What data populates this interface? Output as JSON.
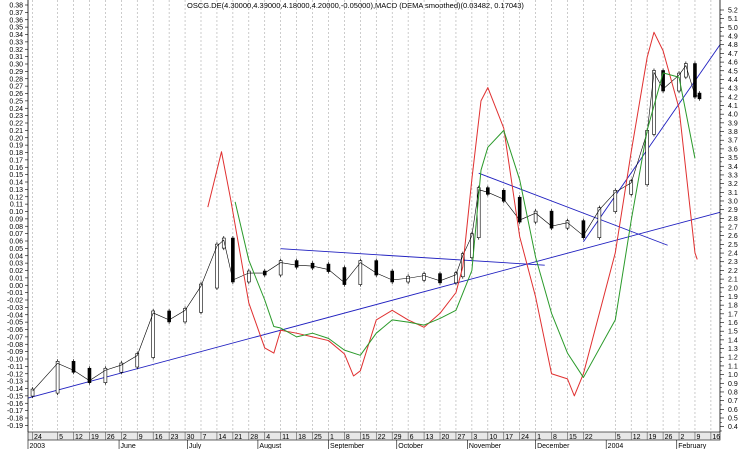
{
  "chart_data": {
    "type": "line",
    "title": "OSCG.DE(4.30000,4.39000,4.18000,4.20000,-0.05000),MACD (DEMA smoothed)(0.03482, 0.17043)",
    "x_domain": [
      "2003-04-22",
      "2004-02-20"
    ],
    "left_axis": {
      "ylim": [
        -0.19,
        0.38
      ],
      "ticks": [
        "0.38",
        "0.37",
        "0.36",
        "0.35",
        "0.34",
        "0.33",
        "0.32",
        "0.31",
        "0.30",
        "0.29",
        "0.28",
        "0.27",
        "0.26",
        "0.25",
        "0.24",
        "0.23",
        "0.22",
        "0.21",
        "0.20",
        "0.19",
        "0.18",
        "0.17",
        "0.16",
        "0.15",
        "0.14",
        "0.13",
        "0.12",
        "0.11",
        "0.10",
        "0.09",
        "0.08",
        "0.07",
        "0.06",
        "0.05",
        "0.04",
        "0.03",
        "0.02",
        "0.01",
        "0.00",
        "-0.01",
        "-0.02",
        "-0.03",
        "-0.04",
        "-0.05",
        "-0.06",
        "-0.07",
        "-0.08",
        "-0.09",
        "-0.10",
        "-0.11",
        "-0.12",
        "-0.13",
        "-0.14",
        "-0.15",
        "-0.16",
        "-0.17",
        "-0.18",
        "-0.19"
      ]
    },
    "right_axis": {
      "ylim": [
        0.4,
        5.2
      ],
      "ticks": [
        "5.2",
        "5.1",
        "5.0",
        "4.9",
        "4.8",
        "4.7",
        "4.6",
        "4.5",
        "4.4",
        "4.3",
        "4.2",
        "4.1",
        "4.0",
        "3.9",
        "3.8",
        "3.7",
        "3.6",
        "3.5",
        "3.4",
        "3.3",
        "3.2",
        "3.1",
        "3.0",
        "2.9",
        "2.8",
        "2.7",
        "2.6",
        "2.5",
        "2.4",
        "2.3",
        "2.2",
        "2.1",
        "2.0",
        "1.9",
        "1.8",
        "1.7",
        "1.6",
        "1.5",
        "1.4",
        "1.3",
        "1.2",
        "1.1",
        "1.0",
        "0.9",
        "0.8",
        "0.7",
        "0.6",
        "0.5",
        "0.4"
      ]
    },
    "x_ticks": [
      {
        "date": "2003-04-24",
        "label": "24"
      },
      {
        "date": "2003-05-05",
        "label": "5"
      },
      {
        "date": "2003-05-12",
        "label": "12"
      },
      {
        "date": "2003-05-19",
        "label": "19"
      },
      {
        "date": "2003-05-26",
        "label": "26"
      },
      {
        "date": "2003-06-02",
        "label": "2"
      },
      {
        "date": "2003-06-09",
        "label": "9"
      },
      {
        "date": "2003-06-16",
        "label": "16"
      },
      {
        "date": "2003-06-23",
        "label": "23"
      },
      {
        "date": "2003-06-30",
        "label": "30"
      },
      {
        "date": "2003-07-07",
        "label": "7"
      },
      {
        "date": "2003-07-14",
        "label": "14"
      },
      {
        "date": "2003-07-21",
        "label": "21"
      },
      {
        "date": "2003-07-28",
        "label": "28"
      },
      {
        "date": "2003-08-04",
        "label": "4"
      },
      {
        "date": "2003-08-11",
        "label": "11"
      },
      {
        "date": "2003-08-18",
        "label": "18"
      },
      {
        "date": "2003-08-25",
        "label": "25"
      },
      {
        "date": "2003-09-01",
        "label": "1"
      },
      {
        "date": "2003-09-08",
        "label": "8"
      },
      {
        "date": "2003-09-15",
        "label": "15"
      },
      {
        "date": "2003-09-22",
        "label": "22"
      },
      {
        "date": "2003-09-29",
        "label": "29"
      },
      {
        "date": "2003-10-06",
        "label": "6"
      },
      {
        "date": "2003-10-13",
        "label": "13"
      },
      {
        "date": "2003-10-20",
        "label": "20"
      },
      {
        "date": "2003-10-27",
        "label": "27"
      },
      {
        "date": "2003-11-03",
        "label": "3"
      },
      {
        "date": "2003-11-10",
        "label": "10"
      },
      {
        "date": "2003-11-17",
        "label": "17"
      },
      {
        "date": "2003-11-24",
        "label": "24"
      },
      {
        "date": "2003-12-01",
        "label": "1"
      },
      {
        "date": "2003-12-08",
        "label": "8"
      },
      {
        "date": "2003-12-15",
        "label": "15"
      },
      {
        "date": "2003-12-22",
        "label": "22"
      },
      {
        "date": "2004-01-05",
        "label": "5"
      },
      {
        "date": "2004-01-12",
        "label": "12"
      },
      {
        "date": "2004-01-19",
        "label": "19"
      },
      {
        "date": "2004-01-26",
        "label": "26"
      },
      {
        "date": "2004-02-02",
        "label": "2"
      },
      {
        "date": "2004-02-09",
        "label": "9"
      },
      {
        "date": "2004-02-16",
        "label": "16"
      }
    ],
    "month_labels": [
      {
        "date": "2003-04-22",
        "label": "2003"
      },
      {
        "date": "2003-06-01",
        "label": "June"
      },
      {
        "date": "2003-07-01",
        "label": "July"
      },
      {
        "date": "2003-08-01",
        "label": "August"
      },
      {
        "date": "2003-09-01",
        "label": "September"
      },
      {
        "date": "2003-10-01",
        "label": "October"
      },
      {
        "date": "2003-11-01",
        "label": "November"
      },
      {
        "date": "2003-12-01",
        "label": "December"
      },
      {
        "date": "2004-01-01",
        "label": "2004"
      },
      {
        "date": "2004-02-01",
        "label": "February"
      }
    ],
    "series": [
      {
        "name": "OSCG.DE",
        "axis": "right",
        "style": "candles",
        "color": "#000000",
        "points": [
          [
            "2003-04-24",
            0.81
          ],
          [
            "2003-05-05",
            1.13
          ],
          [
            "2003-05-12",
            1.05
          ],
          [
            "2003-05-19",
            0.93
          ],
          [
            "2003-05-26",
            1.05
          ],
          [
            "2003-06-02",
            1.11
          ],
          [
            "2003-06-09",
            1.22
          ],
          [
            "2003-06-16",
            1.71
          ],
          [
            "2003-06-23",
            1.63
          ],
          [
            "2003-06-30",
            1.74
          ],
          [
            "2003-07-07",
            2.02
          ],
          [
            "2003-07-14",
            2.48
          ],
          [
            "2003-07-17",
            2.55
          ],
          [
            "2003-07-21",
            2.09
          ],
          [
            "2003-07-28",
            2.17
          ],
          [
            "2003-08-04",
            2.17
          ],
          [
            "2003-08-11",
            2.29
          ],
          [
            "2003-08-18",
            2.26
          ],
          [
            "2003-08-25",
            2.25
          ],
          [
            "2003-09-01",
            2.21
          ],
          [
            "2003-09-08",
            2.06
          ],
          [
            "2003-09-15",
            2.29
          ],
          [
            "2003-09-22",
            2.17
          ],
          [
            "2003-09-29",
            2.09
          ],
          [
            "2003-10-06",
            2.11
          ],
          [
            "2003-10-13",
            2.14
          ],
          [
            "2003-10-20",
            2.08
          ],
          [
            "2003-10-27",
            2.15
          ],
          [
            "2003-10-30",
            2.37
          ],
          [
            "2003-11-03",
            2.6
          ],
          [
            "2003-11-06",
            3.13
          ],
          [
            "2003-11-10",
            3.1
          ],
          [
            "2003-11-17",
            3.02
          ],
          [
            "2003-11-24",
            2.78
          ],
          [
            "2003-12-01",
            2.86
          ],
          [
            "2003-12-08",
            2.71
          ],
          [
            "2003-12-15",
            2.75
          ],
          [
            "2003-12-22",
            2.6
          ],
          [
            "2003-12-29",
            2.9
          ],
          [
            "2004-01-05",
            3.1
          ],
          [
            "2004-01-12",
            3.21
          ],
          [
            "2004-01-19",
            3.79
          ],
          [
            "2004-01-22",
            4.48
          ],
          [
            "2004-01-26",
            4.29
          ],
          [
            "2004-02-02",
            4.45
          ],
          [
            "2004-02-05",
            4.56
          ],
          [
            "2004-02-09",
            4.22
          ],
          [
            "2004-02-11",
            4.2
          ]
        ]
      },
      {
        "name": "MACD",
        "axis": "left",
        "color": "#e03030",
        "points": [
          [
            "2003-07-10",
            0.106
          ],
          [
            "2003-07-16",
            0.181
          ],
          [
            "2003-07-20",
            0.117
          ],
          [
            "2003-07-28",
            -0.024
          ],
          [
            "2003-08-04",
            -0.085
          ],
          [
            "2003-08-08",
            -0.092
          ],
          [
            "2003-08-11",
            -0.061
          ],
          [
            "2003-08-18",
            -0.065
          ],
          [
            "2003-08-25",
            -0.07
          ],
          [
            "2003-09-01",
            -0.075
          ],
          [
            "2003-09-08",
            -0.093
          ],
          [
            "2003-09-12",
            -0.123
          ],
          [
            "2003-09-15",
            -0.116
          ],
          [
            "2003-09-22",
            -0.047
          ],
          [
            "2003-09-29",
            -0.034
          ],
          [
            "2003-10-06",
            -0.047
          ],
          [
            "2003-10-13",
            -0.057
          ],
          [
            "2003-10-20",
            -0.038
          ],
          [
            "2003-10-27",
            -0.01
          ],
          [
            "2003-10-30",
            0.025
          ],
          [
            "2003-11-03",
            0.144
          ],
          [
            "2003-11-07",
            0.25
          ],
          [
            "2003-11-10",
            0.268
          ],
          [
            "2003-11-17",
            0.213
          ],
          [
            "2003-11-24",
            0.066
          ],
          [
            "2003-12-01",
            -0.016
          ],
          [
            "2003-12-08",
            -0.12
          ],
          [
            "2003-12-15",
            -0.127
          ],
          [
            "2003-12-18",
            -0.15
          ],
          [
            "2003-12-22",
            -0.12
          ],
          [
            "2004-01-05",
            0.044
          ],
          [
            "2004-01-12",
            0.181
          ],
          [
            "2004-01-19",
            0.309
          ],
          [
            "2004-01-22",
            0.343
          ],
          [
            "2004-01-26",
            0.318
          ],
          [
            "2004-02-02",
            0.24
          ],
          [
            "2004-02-09",
            0.044
          ],
          [
            "2004-02-10",
            0.035
          ]
        ]
      },
      {
        "name": "Signal",
        "axis": "left",
        "color": "#2a9a2a",
        "points": [
          [
            "2003-07-22",
            0.113
          ],
          [
            "2003-07-28",
            0.034
          ],
          [
            "2003-08-04",
            -0.02
          ],
          [
            "2003-08-08",
            -0.056
          ],
          [
            "2003-08-11",
            -0.058
          ],
          [
            "2003-08-18",
            -0.07
          ],
          [
            "2003-08-25",
            -0.065
          ],
          [
            "2003-09-01",
            -0.072
          ],
          [
            "2003-09-08",
            -0.088
          ],
          [
            "2003-09-15",
            -0.095
          ],
          [
            "2003-09-22",
            -0.065
          ],
          [
            "2003-09-29",
            -0.047
          ],
          [
            "2003-10-06",
            -0.05
          ],
          [
            "2003-10-13",
            -0.054
          ],
          [
            "2003-10-20",
            -0.045
          ],
          [
            "2003-10-27",
            -0.034
          ],
          [
            "2003-10-30",
            -0.011
          ],
          [
            "2003-11-03",
            0.02
          ],
          [
            "2003-11-07",
            0.156
          ],
          [
            "2003-11-10",
            0.187
          ],
          [
            "2003-11-17",
            0.21
          ],
          [
            "2003-11-24",
            0.143
          ],
          [
            "2003-12-01",
            0.038
          ],
          [
            "2003-12-08",
            -0.038
          ],
          [
            "2003-12-15",
            -0.092
          ],
          [
            "2003-12-22",
            -0.125
          ],
          [
            "2004-01-05",
            -0.047
          ],
          [
            "2004-01-12",
            0.088
          ],
          [
            "2004-01-19",
            0.21
          ],
          [
            "2004-01-26",
            0.288
          ],
          [
            "2004-02-02",
            0.282
          ],
          [
            "2004-02-09",
            0.172
          ]
        ]
      }
    ],
    "trendlines": {
      "axis": "right",
      "color": "#2020c0",
      "lines": [
        [
          [
            "2003-04-22",
            0.73
          ],
          [
            "2004-02-20",
            2.87
          ]
        ],
        [
          [
            "2003-08-11",
            2.45
          ],
          [
            "2003-12-05",
            2.26
          ]
        ],
        [
          [
            "2003-11-06",
            3.32
          ],
          [
            "2004-01-28",
            2.49
          ]
        ],
        [
          [
            "2003-12-22",
            2.53
          ],
          [
            "2004-02-20",
            4.8
          ]
        ]
      ]
    },
    "grid": "vertical dashed"
  }
}
